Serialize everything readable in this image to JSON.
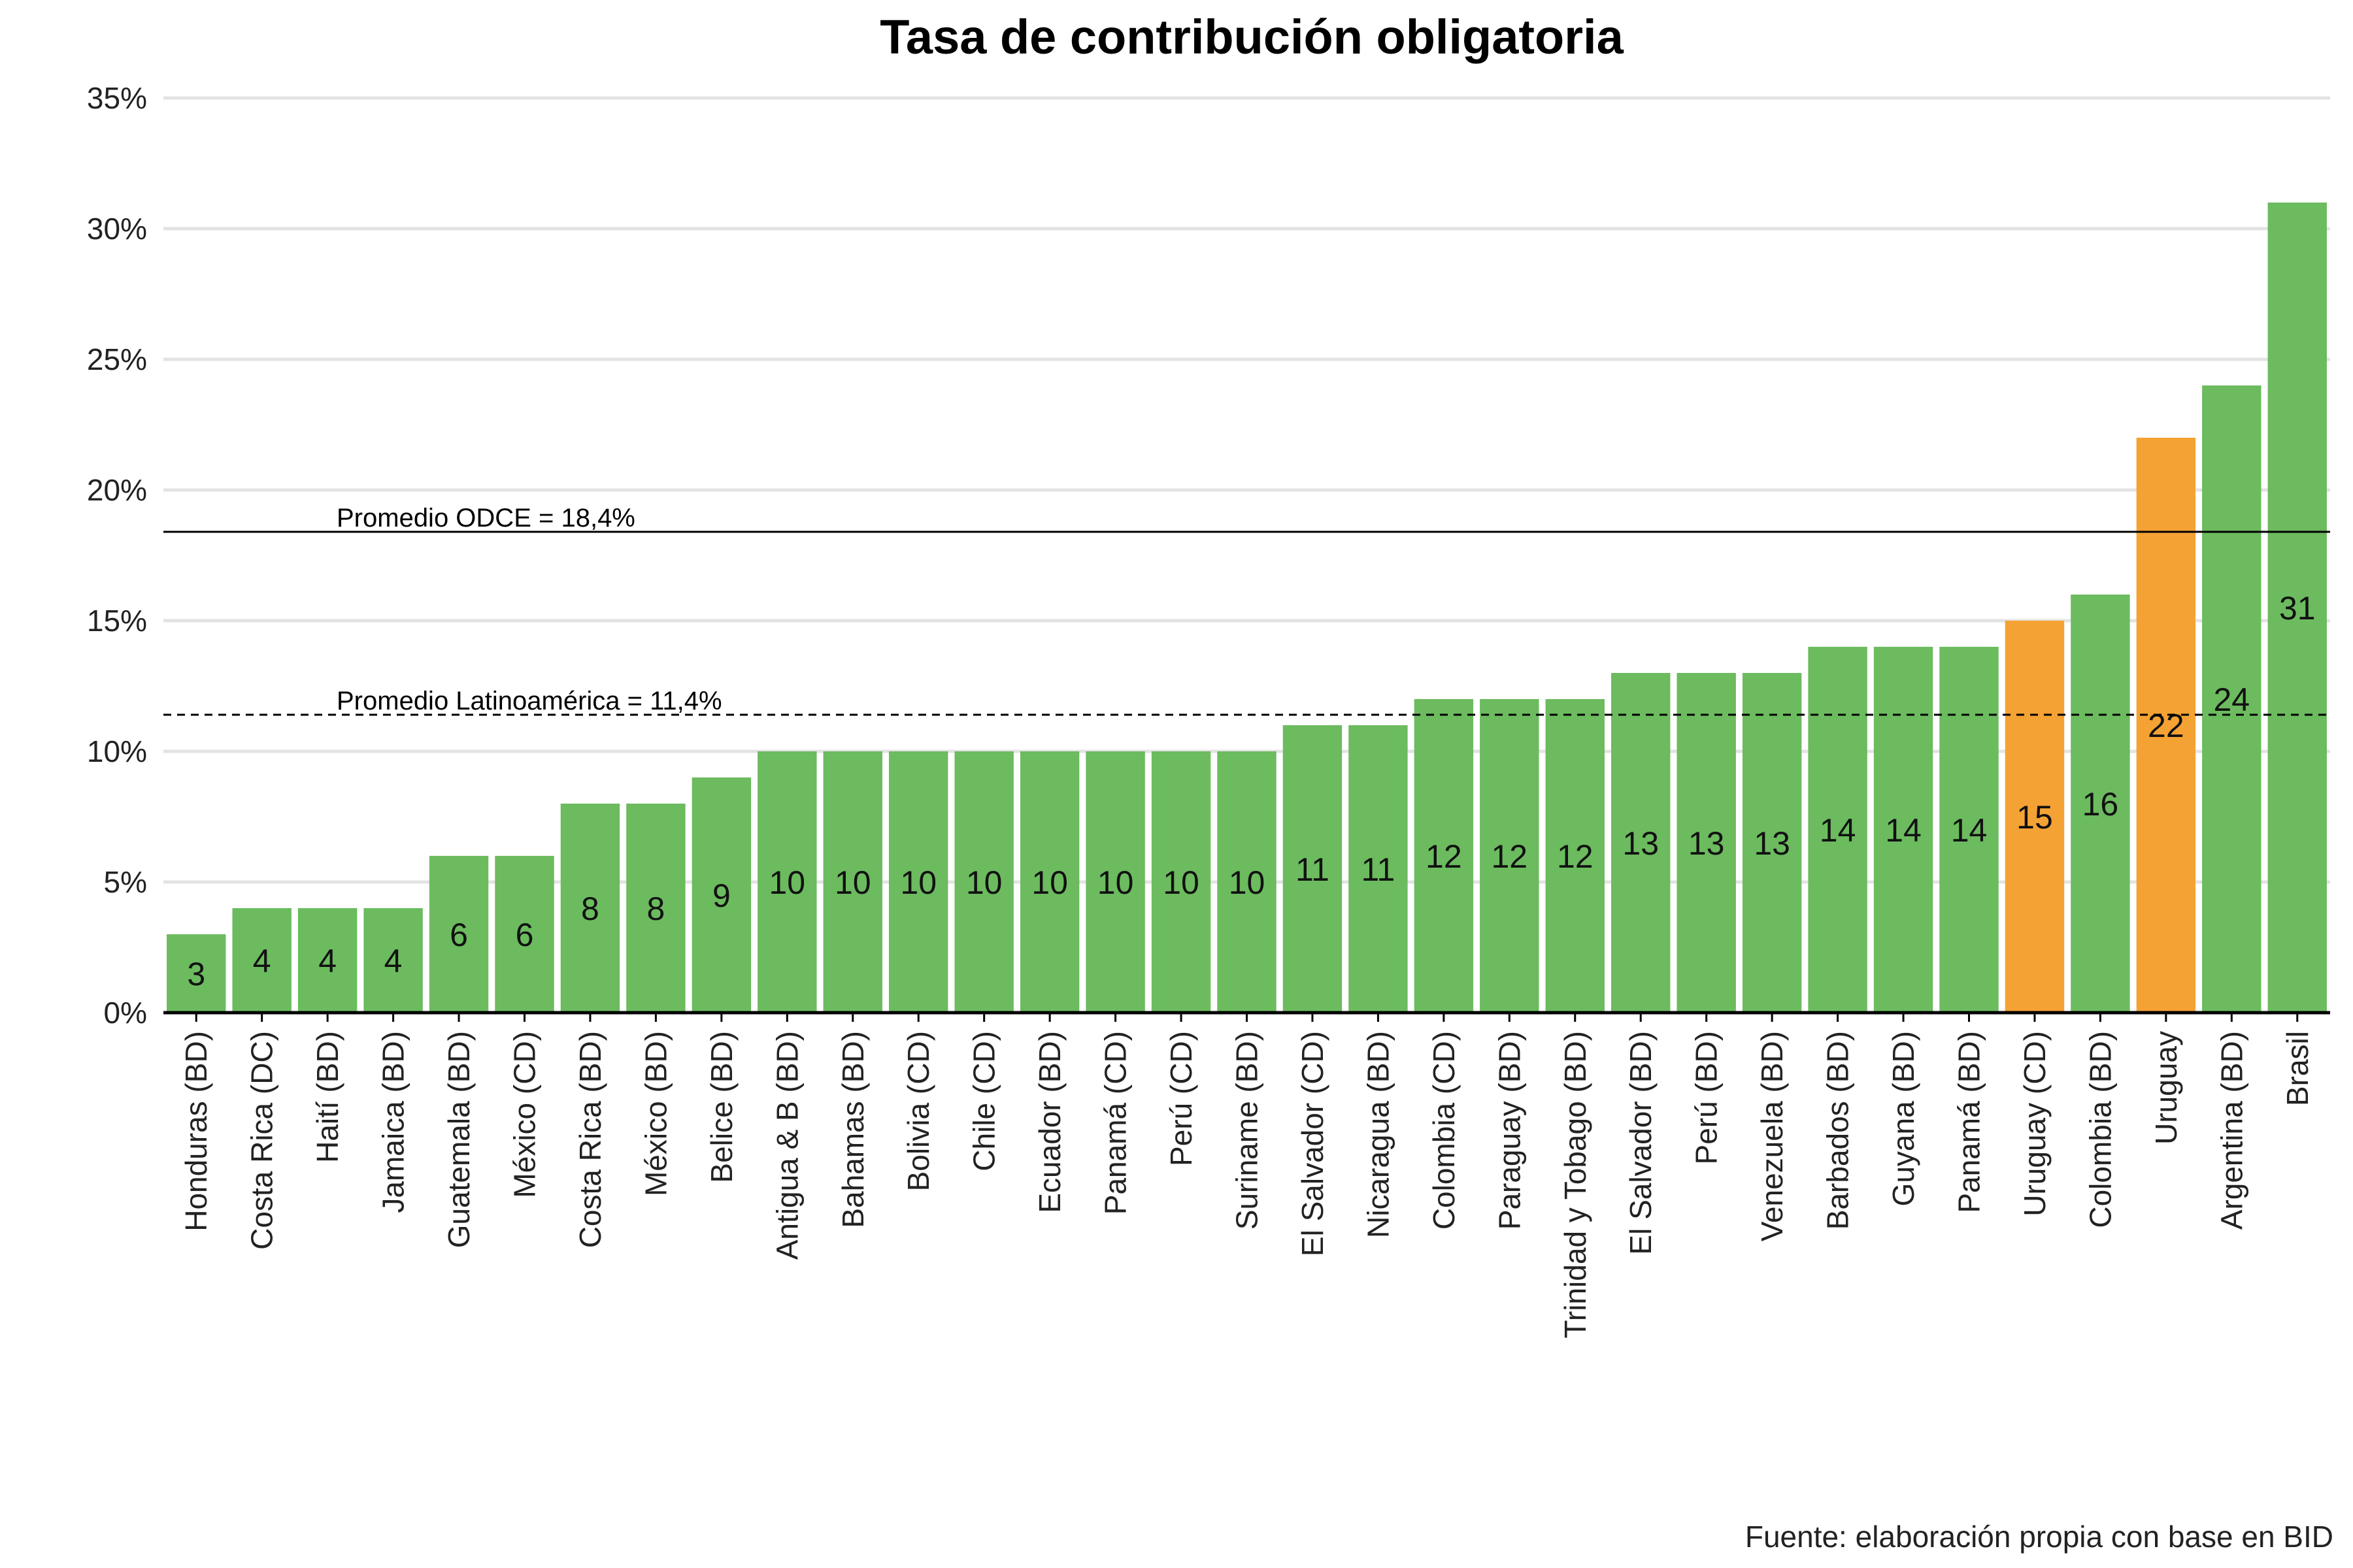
{
  "title": "Tasa de contribución obligatoria",
  "source": "Fuente: elaboración propia con base en BID",
  "colors": {
    "default_bar": "#6cbb5f",
    "highlight_bar": "#f5a234",
    "grid": "#e3e3e3",
    "axis": "#000000"
  },
  "chart_data": {
    "type": "bar",
    "title": "Tasa de contribución obligatoria",
    "xlabel": "",
    "ylabel": "",
    "ylim": [
      0,
      35
    ],
    "yticks": [
      "0%",
      "5%",
      "10%",
      "15%",
      "20%",
      "25%",
      "30%",
      "35%"
    ],
    "grid": true,
    "categories": [
      "Honduras (BD)",
      "Costa Rica (DC)",
      "Haití (BD)",
      "Jamaica (BD)",
      "Guatemala (BD)",
      "México (CD)",
      "Costa Rica (BD)",
      "México (BD)",
      "Belice (BD)",
      "Antigua & B (BD)",
      "Bahamas (BD)",
      "Bolivia (CD)",
      "Chile (CD)",
      "Ecuador (BD)",
      "Panamá (CD)",
      "Perú (CD)",
      "Suriname (BD)",
      "El Salvador (CD)",
      "Nicaragua (BD)",
      "Colombia (CD)",
      "Paraguay (BD)",
      "Trinidad y Tobago (BD)",
      "El Salvador (BD)",
      "Perú (BD)",
      "Venezuela (BD)",
      "Barbados (BD)",
      "Guyana (BD)",
      "Panamá (BD)",
      "Uruguay (CD)",
      "Colombia (BD)",
      "Uruguay",
      "Argentina (BD)",
      "Brasil"
    ],
    "values": [
      3,
      4,
      4,
      4,
      6,
      6,
      8,
      8,
      9,
      10,
      10,
      10,
      10,
      10,
      10,
      10,
      10,
      11,
      11,
      12,
      12,
      12,
      13,
      13,
      13,
      14,
      14,
      14,
      15,
      16,
      22,
      24,
      31
    ],
    "highlighted": [
      "Uruguay (CD)",
      "Uruguay"
    ],
    "reference_lines": [
      {
        "label": "Promedio ODCE = 18,4%",
        "value": 18.4,
        "style": "solid"
      },
      {
        "label": "Promedio Latinoamérica = 11,4%",
        "value": 11.4,
        "style": "dashed"
      }
    ]
  }
}
